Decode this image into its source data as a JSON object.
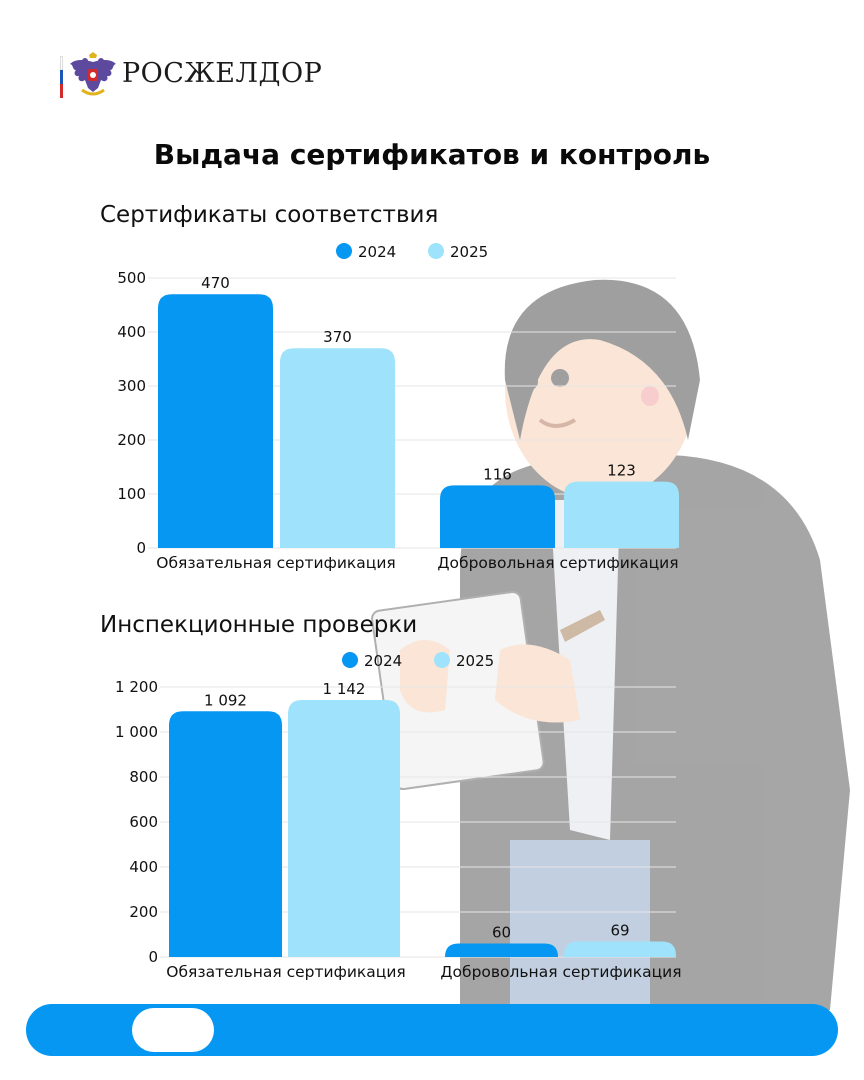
{
  "brand": {
    "name": "РОСЖЕЛДОР"
  },
  "title": "Выдача сертификатов и контроль",
  "colors": {
    "series_2024": "#0597f2",
    "series_2025": "#9ee3fb",
    "bar": "#0597f2",
    "flag": [
      "#ffffff",
      "#1c56b8",
      "#d42a2a"
    ]
  },
  "chart_data": [
    {
      "type": "bar",
      "title": "Сертификаты соответствия",
      "categories": [
        "Обязательная сертификация",
        "Добровольная сертификация"
      ],
      "series": [
        {
          "name": "2024",
          "values": [
            470,
            116
          ]
        },
        {
          "name": "2025",
          "values": [
            370,
            123
          ]
        }
      ],
      "data_labels": [
        [
          "470",
          "116"
        ],
        [
          "370",
          "123"
        ]
      ],
      "yticks": [
        "0",
        "100",
        "200",
        "300",
        "400",
        "500"
      ],
      "ylim": [
        0,
        500
      ],
      "legend_position": "top-center",
      "grid": true
    },
    {
      "type": "bar",
      "title": "Инспекционные проверки",
      "categories": [
        "Обязательная сертификация",
        "Добровольная сертификация"
      ],
      "series": [
        {
          "name": "2024",
          "values": [
            1092,
            60
          ]
        },
        {
          "name": "2025",
          "values": [
            1142,
            69
          ]
        }
      ],
      "data_labels": [
        [
          "1 092",
          "60"
        ],
        [
          "1 142",
          "69"
        ]
      ],
      "yticks": [
        "0",
        "200",
        "400",
        "600",
        "800",
        "1 000",
        "1 200"
      ],
      "ylim": [
        0,
        1200
      ],
      "legend_position": "top-center",
      "grid": true
    }
  ]
}
